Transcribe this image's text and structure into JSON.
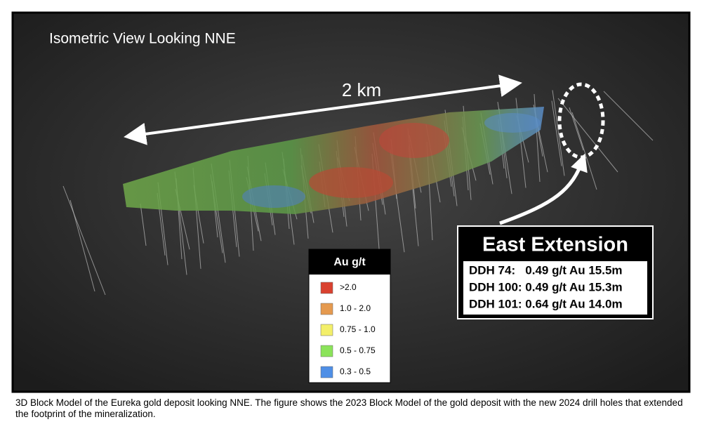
{
  "header": {
    "title": "Isometric View Looking NNE"
  },
  "scale_label": "2 km",
  "legend": {
    "title": "Au g/t",
    "items": [
      {
        "label": ">2.0",
        "color": "#d9412f"
      },
      {
        "label": "1.0 - 2.0",
        "color": "#e59a4f"
      },
      {
        "label": "0.75 - 1.0",
        "color": "#f3ef6a"
      },
      {
        "label": "0.5 - 0.75",
        "color": "#8be35a"
      },
      {
        "label": "0.3 - 0.5",
        "color": "#4f8fe6"
      }
    ]
  },
  "callout": {
    "title": "East Extension",
    "lines": [
      "DDH 74:   0.49 g/t Au 15.5m",
      "DDH 100: 0.49 g/t Au 15.3m",
      "DDH 101: 0.64 g/t Au 14.0m"
    ]
  },
  "caption": "3D Block Model of the Eureka gold deposit looking NNE. The figure shows the 2023 Block Model of the gold deposit with the new 2024 drill holes that extended the footprint of the mineralization."
}
